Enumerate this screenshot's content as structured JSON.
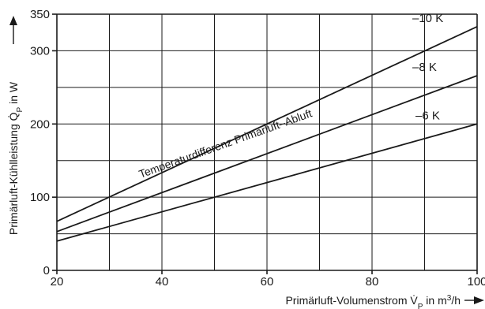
{
  "chart_data": {
    "type": "line",
    "title": "",
    "xlabel": "Primärluft-Volumenstrom V̇P in m³/h",
    "xlabel_parts": {
      "pre": "Primärluft-Volumenstrom ",
      "sym": "V̇",
      "sub": "P",
      "mid": " in m",
      "sup": "3",
      "post": "/h"
    },
    "ylabel": "Primärluft-Kühlleistung Q̇P in W",
    "ylabel_parts": {
      "pre": "Primärluft-Kühlleistung ",
      "sym": "Q̇",
      "sub": "P",
      "post": " in W"
    },
    "xlim": [
      20,
      100
    ],
    "ylim": [
      0,
      350
    ],
    "grid": true,
    "x_ticks": [
      20,
      40,
      60,
      80,
      100
    ],
    "y_ticks": [
      0,
      100,
      200,
      300,
      350
    ],
    "annotation": "Temperaturdifferenz Primärluft–Abluft",
    "series": [
      {
        "name": "–10 K",
        "x": [
          20,
          100
        ],
        "y": [
          67,
          333
        ]
      },
      {
        "name": "–8 K",
        "x": [
          20,
          100
        ],
        "y": [
          53,
          266
        ]
      },
      {
        "name": "–6 K",
        "x": [
          20,
          100
        ],
        "y": [
          40,
          200
        ]
      }
    ]
  }
}
